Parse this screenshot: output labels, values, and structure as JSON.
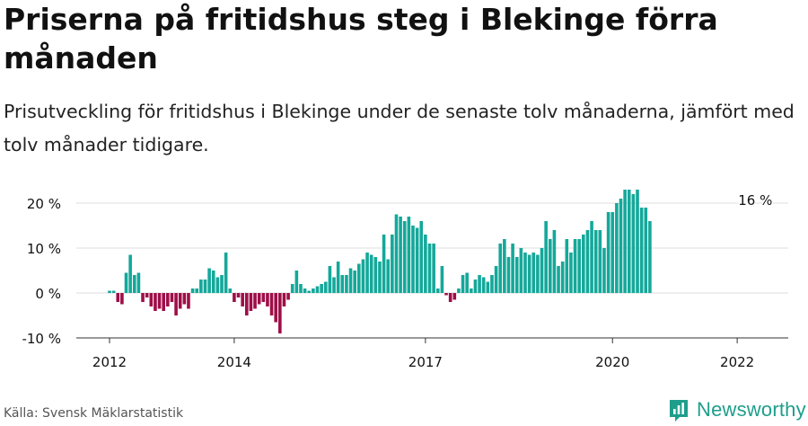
{
  "title": "Priserna på fritidshus steg i Blekinge förra månaden",
  "subtitle": "Prisutveckling för fritidshus i Blekinge under de senaste tolv månaderna, jämfört med tolv månader tidigare.",
  "source": "Källa: Svensk Mäklarstatistik",
  "brand": {
    "name": "Newsworthy",
    "icon": "newsworthy-logo-icon"
  },
  "colors": {
    "positive": "#14a89a",
    "negative": "#9e0e48",
    "grid": "#dddddd",
    "axis": "#333333",
    "text": "#111111"
  },
  "chart_data": {
    "type": "bar",
    "ylabel": "",
    "xlabel": "",
    "ylim": [
      -10,
      23
    ],
    "y_ticks": [
      {
        "value": -10,
        "label": "-10 %"
      },
      {
        "value": 0,
        "label": "0 %"
      },
      {
        "value": 10,
        "label": "10 %"
      },
      {
        "value": 20,
        "label": "20 %"
      }
    ],
    "x_ticks": [
      {
        "index": 0,
        "label": "2012"
      },
      {
        "index": 30,
        "label": "2014"
      },
      {
        "index": 76,
        "label": "2017"
      },
      {
        "index": 121,
        "label": "2020"
      },
      {
        "index": 151,
        "label": "2022"
      }
    ],
    "annotation": {
      "index": 156,
      "label": "16 %"
    },
    "values": [
      0.5,
      0.5,
      -2,
      -2.5,
      4.5,
      8.5,
      4,
      4.5,
      -2,
      -1,
      -3,
      -4,
      -3.5,
      -4,
      -3,
      -2,
      -5,
      -3.5,
      -2.5,
      -3.5,
      1,
      1,
      3,
      3,
      5.5,
      5,
      3.5,
      4,
      9,
      1,
      -2,
      -1,
      -3,
      -5,
      -4,
      -3.5,
      -2.5,
      -2,
      -3,
      -5,
      -6.5,
      -9,
      -3,
      -1.5,
      2,
      5,
      2,
      1,
      0.5,
      1,
      1.5,
      2,
      2.5,
      6,
      3.5,
      7,
      4,
      4,
      5.5,
      5,
      6.5,
      7.5,
      9,
      8.5,
      8,
      7,
      13,
      7.5,
      13,
      17.5,
      17,
      16,
      17,
      15,
      14.5,
      16,
      13,
      11,
      11,
      1,
      6,
      -0.5,
      -2,
      -1.5,
      1,
      4,
      4.5,
      1,
      3,
      4,
      3.5,
      2.5,
      4,
      6,
      11,
      12,
      8,
      11,
      8,
      10,
      9,
      8.5,
      9,
      8.5,
      10,
      16,
      12,
      14,
      6,
      7,
      12,
      9,
      12,
      12,
      13,
      14,
      16,
      14,
      14,
      10,
      18,
      18,
      20,
      21,
      23,
      23,
      22,
      23,
      19,
      19,
      16
    ]
  }
}
